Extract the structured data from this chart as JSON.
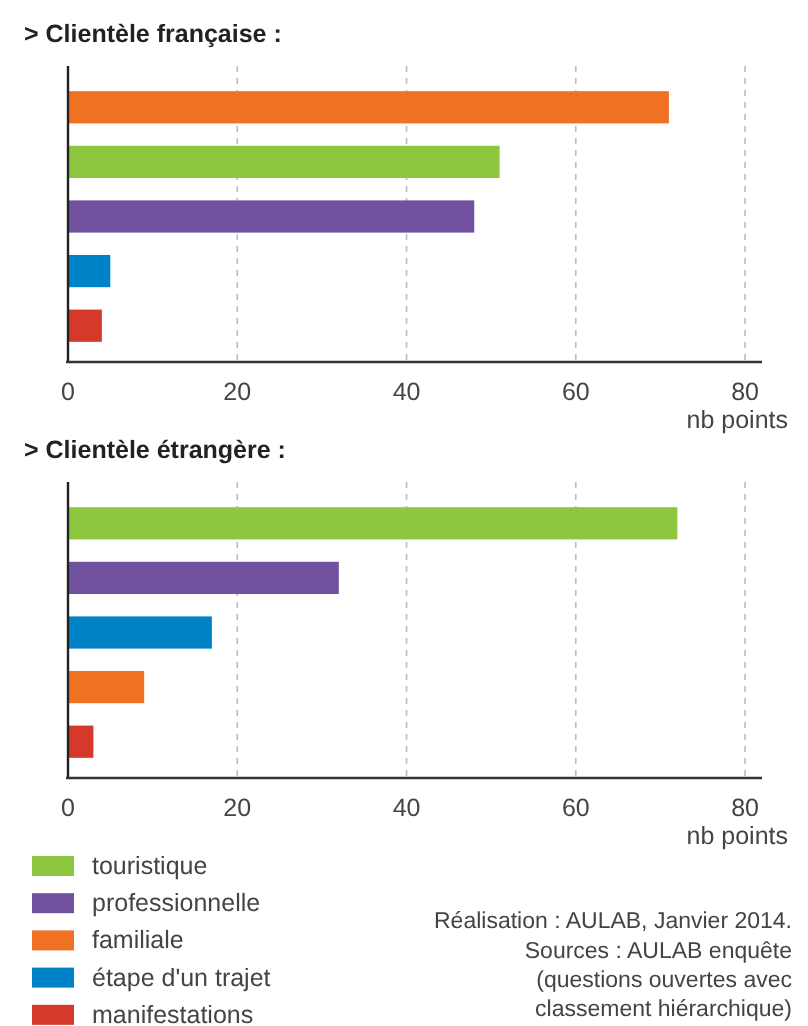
{
  "chart_data": [
    {
      "type": "bar",
      "orientation": "horizontal",
      "title": "> Clientèle française :",
      "xlabel": "nb points",
      "categories": [
        null,
        null,
        null,
        null,
        null
      ],
      "values": [
        71,
        51,
        48,
        5,
        4
      ],
      "colors": [
        "#f07124",
        "#8dc63f",
        "#7152a0",
        "#0083c6",
        "#d4392b"
      ],
      "xlim": [
        0,
        82
      ],
      "xticks": [
        0,
        20,
        40,
        60,
        80
      ],
      "grid": "x"
    },
    {
      "type": "bar",
      "orientation": "horizontal",
      "title": "> Clientèle étrangère :",
      "xlabel": "nb points",
      "categories": [
        null,
        null,
        null,
        null,
        null
      ],
      "series": [
        {
          "name": "touristique",
          "color": "#8dc63f",
          "values": [
            72,
            null,
            null,
            null,
            null
          ]
        },
        {
          "name": "professionnelle",
          "color": "#7152a0",
          "values": [
            null,
            32,
            null,
            null,
            null
          ]
        },
        {
          "name": "familiale",
          "color": "#f07124",
          "values": [
            null,
            null,
            null,
            9,
            null
          ]
        },
        {
          "name": "étape d'un trajet",
          "color": "#0083c6",
          "values": [
            null,
            null,
            17,
            null,
            null
          ]
        },
        {
          "name": "manifestations",
          "color": "#d4392b",
          "values": [
            null,
            null,
            null,
            null,
            3
          ]
        }
      ],
      "xlim": [
        0,
        82
      ],
      "xticks": [
        0,
        20,
        40,
        60,
        80
      ],
      "grid": "x",
      "legend": "bottom left",
      "annotations": [
        "Réalisation : AULAB, Janvier 2014.",
        "Sources : AULAB enquête\n(questions ouvertes avec\nclassement hiérarchique)"
      ]
    }
  ]
}
